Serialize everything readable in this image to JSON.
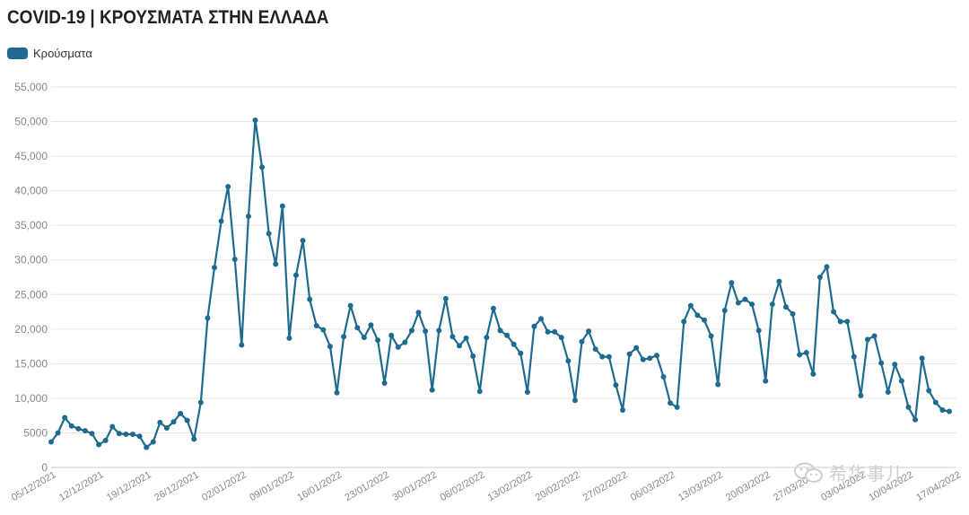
{
  "chart_data": {
    "type": "line",
    "title": "COVID-19 | ΚΡΟΥΣΜΑΤΑ ΣΤΗΝ ΕΛΛΑΔΑ",
    "series": [
      {
        "name": "Κρούσματα",
        "color": "#1f6a8f",
        "values": [
          3700,
          5000,
          7200,
          6000,
          5600,
          5300,
          4900,
          3300,
          3900,
          5900,
          4900,
          4800,
          4800,
          4500,
          2900,
          3700,
          6500,
          5700,
          6600,
          7800,
          6800,
          4100,
          9400,
          21600,
          28900,
          35600,
          40600,
          30100,
          17700,
          36300,
          50200,
          43400,
          33800,
          29400,
          37800,
          18700,
          27800,
          32800,
          24300,
          20500,
          19900,
          17500,
          10800,
          18900,
          23400,
          20200,
          18800,
          20600,
          18400,
          12200,
          19100,
          17400,
          18100,
          19800,
          22400,
          19700,
          11200,
          19800,
          24400,
          18900,
          17600,
          18700,
          16100,
          11000,
          18800,
          23000,
          19800,
          19100,
          17800,
          16500,
          10900,
          20400,
          21500,
          19600,
          19600,
          18800,
          15400,
          9700,
          18200,
          19700,
          17100,
          16000,
          16000,
          11900,
          8300,
          16400,
          17300,
          15600,
          15800,
          16200,
          13100,
          9300,
          8700,
          21100,
          23400,
          22000,
          21300,
          19000,
          12000,
          22700,
          26700,
          23800,
          24300,
          23600,
          19800,
          12500,
          23600,
          26900,
          23200,
          22200,
          16300,
          16600,
          13500,
          27500,
          29000,
          22500,
          21100,
          21100,
          16000,
          10400,
          18500,
          19000,
          15100,
          10900,
          14900,
          12500,
          8700,
          6900,
          15800,
          11100,
          9400,
          8300,
          8100
        ]
      }
    ],
    "x_start": "05/12/2021",
    "x_end": "17/04/2022",
    "x_tick_labels": [
      "05/12/2021",
      "12/12/2021",
      "19/12/2021",
      "26/12/2021",
      "02/01/2022",
      "09/01/2022",
      "16/01/2022",
      "23/01/2022",
      "30/01/2022",
      "06/02/2022",
      "13/02/2022",
      "20/02/2022",
      "27/02/2022",
      "06/03/2022",
      "13/03/2022",
      "20/03/2022",
      "27/03/2022",
      "03/04/2022",
      "10/04/2022",
      "17/04/2022"
    ],
    "y_ticks": [
      0,
      5000,
      10000,
      15000,
      20000,
      25000,
      30000,
      35000,
      40000,
      45000,
      50000,
      55000
    ],
    "y_tick_labels": [
      "0",
      "5000",
      "10,000",
      "15,000",
      "20,000",
      "25,000",
      "30,000",
      "35,000",
      "40,000",
      "45,000",
      "50,000",
      "55,000"
    ],
    "ylim": [
      0,
      55000
    ],
    "grid": true,
    "legend": "top-left"
  },
  "watermark": {
    "text": "希华事儿"
  }
}
